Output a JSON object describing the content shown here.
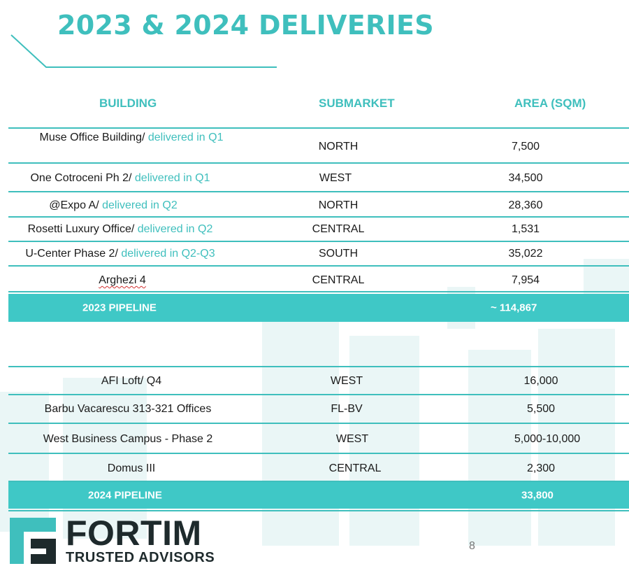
{
  "page": {
    "title": "2023 & 2024 DELIVERIES",
    "page_number": "8"
  },
  "headers": {
    "building": "BUILDING",
    "submarket": "SUBMARKET",
    "area": "AREA (SQM)"
  },
  "rows_2023": [
    {
      "building": "Muse Office Building/ ",
      "note": "delivered in Q1",
      "submarket": "NORTH",
      "area": "7,500"
    },
    {
      "building": "One Cotroceni Ph 2/ ",
      "note": "delivered in Q1",
      "submarket": "WEST",
      "area": "34,500"
    },
    {
      "building": "@Expo A/ ",
      "note": "delivered in Q2",
      "submarket": "NORTH",
      "area": "28,360"
    },
    {
      "building": "Rosetti Luxury Office/ ",
      "note": "delivered in Q2",
      "submarket": "CENTRAL",
      "area": "1,531"
    },
    {
      "building": "U-Center Phase 2/ ",
      "note": "delivered in Q2-Q3",
      "submarket": "SOUTH",
      "area": "35,022"
    },
    {
      "building": "Arghezi 4",
      "note": "",
      "submarket": "CENTRAL",
      "area": "7,954"
    }
  ],
  "total_2023": {
    "label": "2023 PIPELINE",
    "value": "~ 114,867"
  },
  "rows_2024": [
    {
      "building": "AFI Loft/ Q4",
      "submarket": "WEST",
      "area": "16,000"
    },
    {
      "building": "Barbu Vacarescu 313-321 Offices",
      "submarket": "FL-BV",
      "area": "5,500"
    },
    {
      "building": "West Business Campus - Phase 2",
      "submarket": "WEST",
      "area": "5,000-10,000"
    },
    {
      "building": "Domus III",
      "submarket": "CENTRAL",
      "area": "2,300"
    }
  ],
  "total_2024": {
    "label": "2024 PIPELINE",
    "value": "33,800"
  },
  "brand": {
    "name": "FORTIM",
    "tagline": "TRUSTED ADVISORS"
  },
  "colors": {
    "accent": "#3fbfbd",
    "band": "#3fc8c6",
    "brand_dark": "#1e2a2c"
  }
}
